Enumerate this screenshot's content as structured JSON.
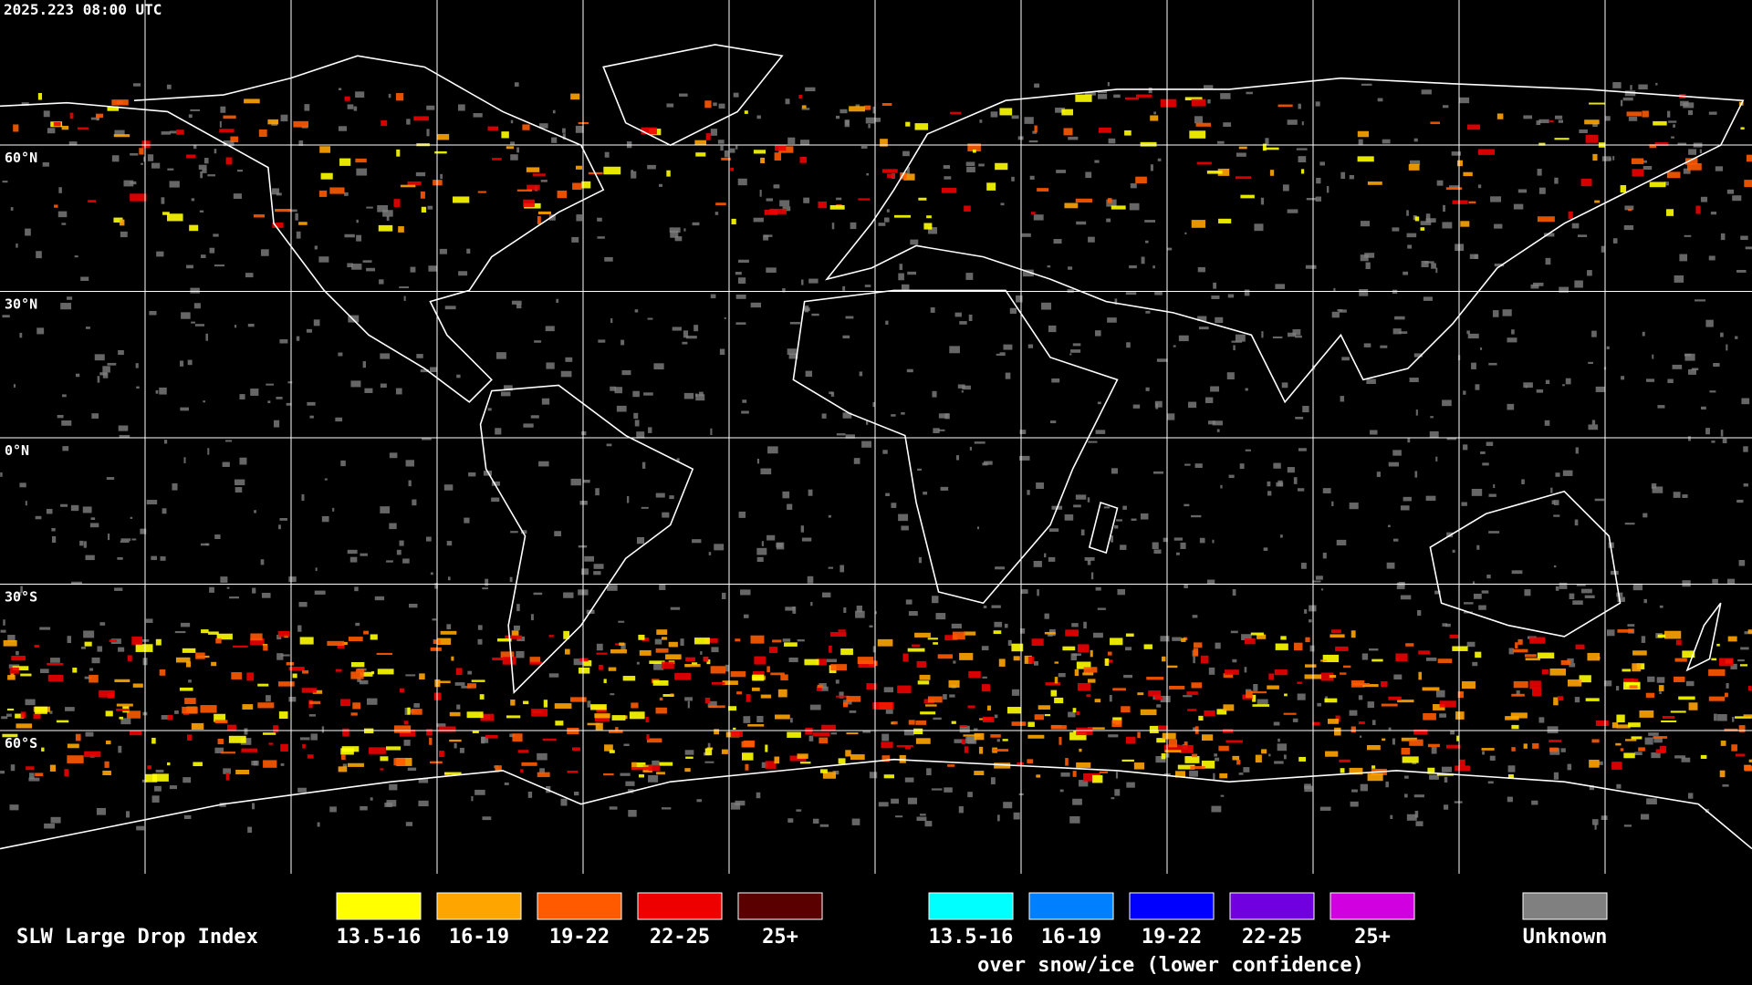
{
  "timestamp": "2025.223 08:00 UTC",
  "latitude_labels": [
    "60°N",
    "30°N",
    "0°N",
    "30°S",
    "60°S"
  ],
  "legend": {
    "title": "SLW Large Drop Index",
    "items": [
      {
        "label": "13.5-16",
        "color": "#ffff00"
      },
      {
        "label": "16-19",
        "color": "#ffa500"
      },
      {
        "label": "19-22",
        "color": "#ff5a00"
      },
      {
        "label": "22-25",
        "color": "#ee0000"
      },
      {
        "label": "25+",
        "color": "#5a0000"
      }
    ],
    "snow_items": [
      {
        "label": "13.5-16",
        "color": "#00ffff"
      },
      {
        "label": "16-19",
        "color": "#0080ff"
      },
      {
        "label": "19-22",
        "color": "#0000ff"
      },
      {
        "label": "22-25",
        "color": "#7000e0"
      },
      {
        "label": "25+",
        "color": "#d000e0"
      }
    ],
    "snow_caption": "over snow/ice (lower confidence)",
    "unknown": {
      "label": "Unknown",
      "color": "#808080"
    }
  }
}
